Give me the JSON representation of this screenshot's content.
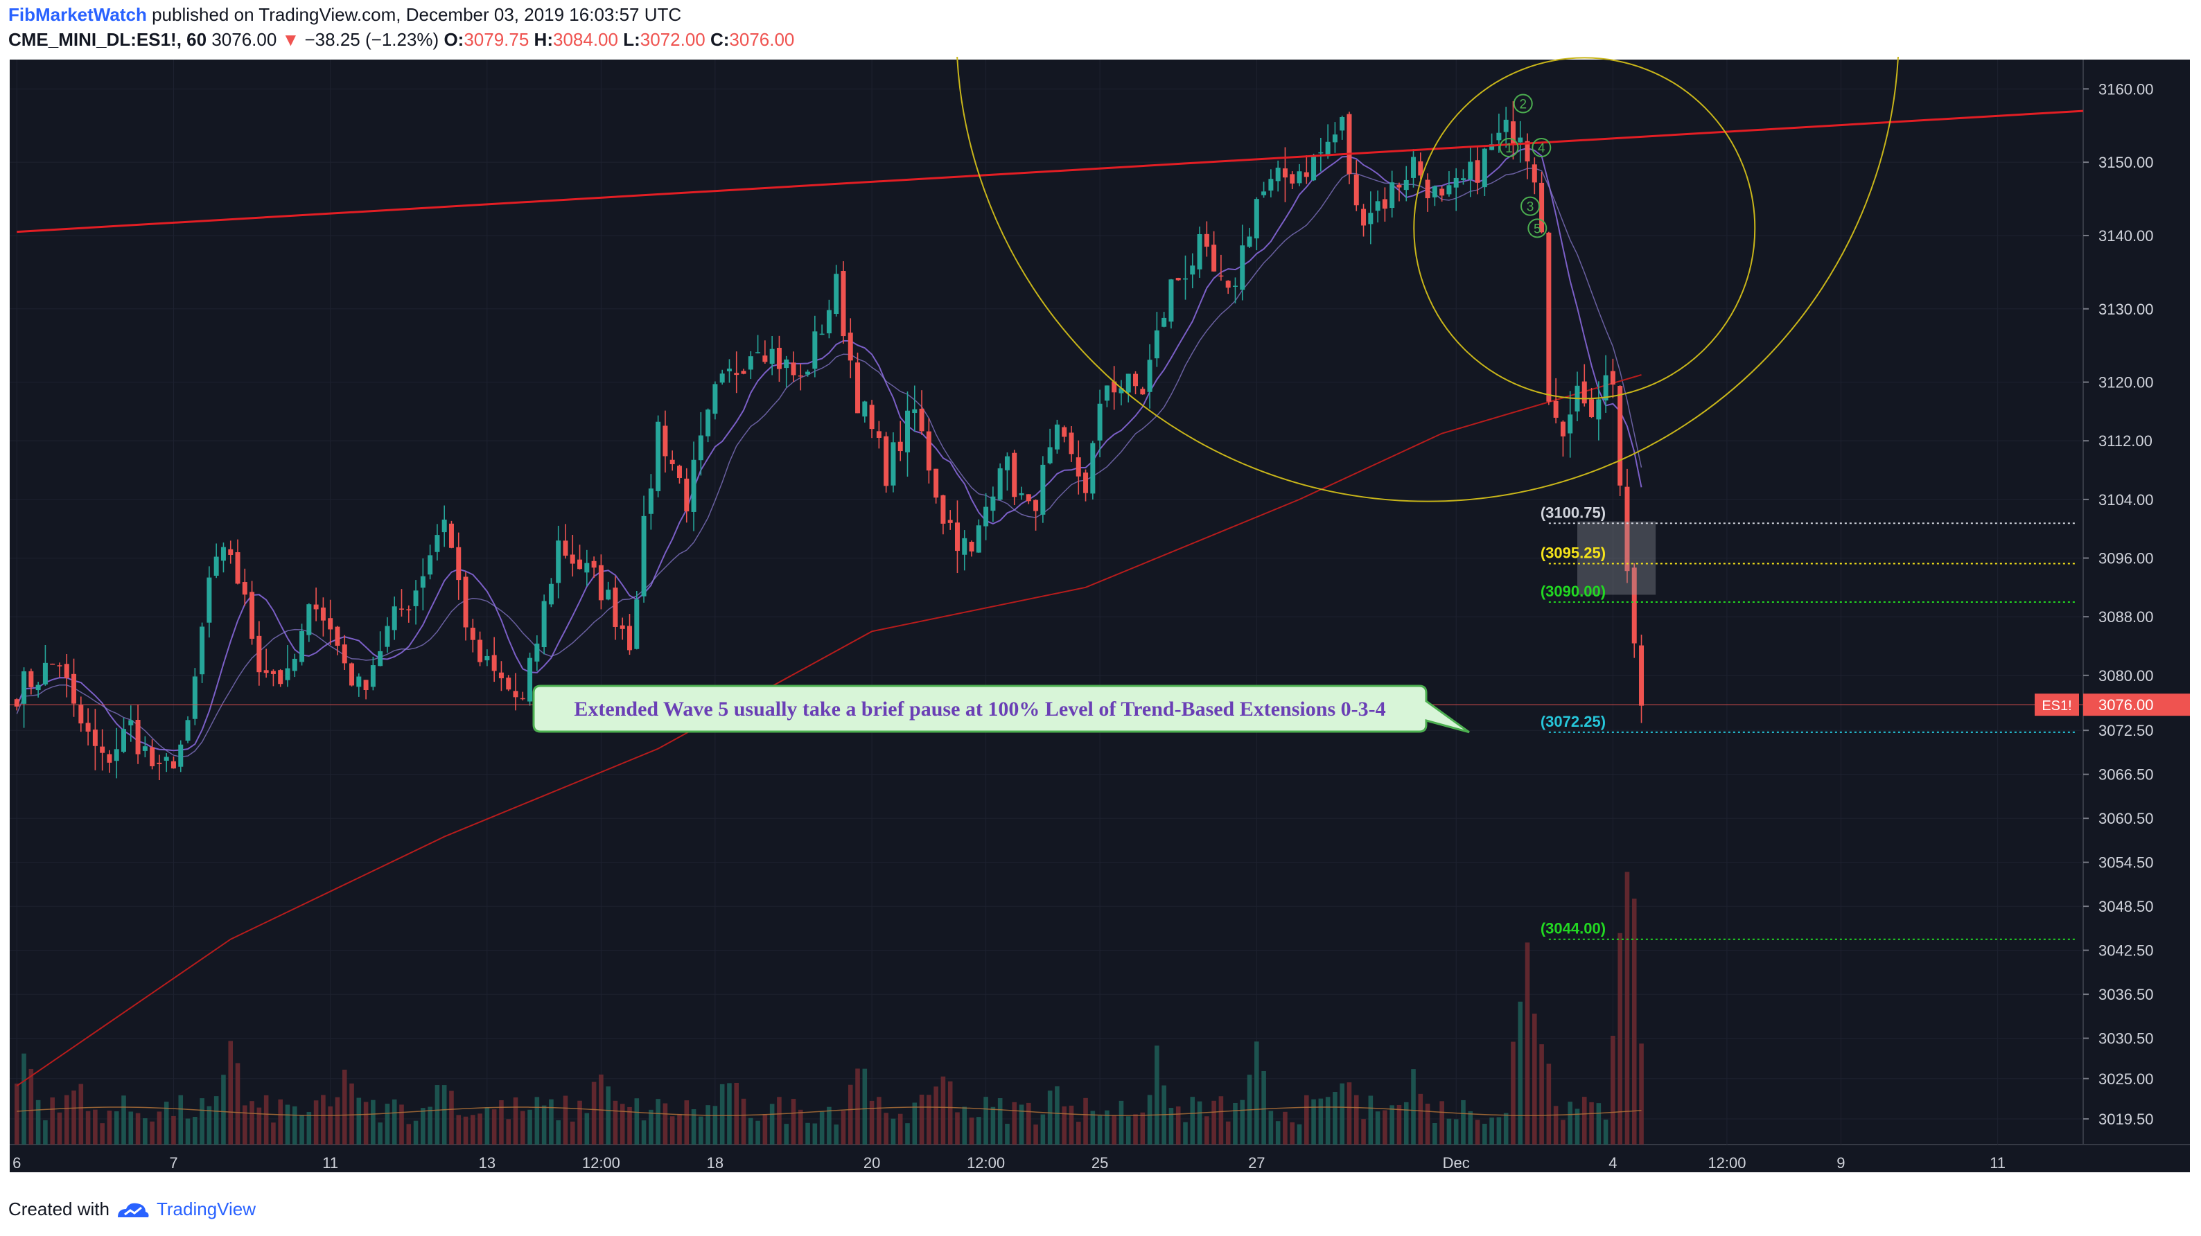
{
  "header": {
    "author": "FibMarketWatch",
    "published_text": "published on TradingView.com, December 03, 2019 16:03:57 UTC",
    "symbol": "CME_MINI_DL:ES1!, 60",
    "last": "3076.00",
    "change": "−38.25 (−1.23%)",
    "o_label": "O:",
    "o_value": "3079.75",
    "h_label": "H:",
    "h_value": "3084.00",
    "l_label": "L:",
    "l_value": "3072.00",
    "c_label": "C:",
    "c_value": "3076.00",
    "down_arrow": "▼"
  },
  "footer": {
    "created_with": "Created with",
    "brand": "TradingView",
    "logo_icon": "tradingview-logo-icon"
  },
  "colors": {
    "background": "#131722",
    "grid": "#1e2230",
    "up": "#26a69a",
    "down": "#ef5350",
    "trendline": "#e31e24",
    "ma200": "#b71c1c",
    "ma_short": "#7b5fc7",
    "circle": "#c9b61a",
    "wave_label": "#4caf50",
    "callout_text": "#6a3fb5"
  },
  "chart_data": {
    "type": "candlestick",
    "ylim": [
      3016,
      3164
    ],
    "y_ticks": [
      "3160.00",
      "3150.00",
      "3140.00",
      "3130.00",
      "3120.00",
      "3112.00",
      "3104.00",
      "3096.00",
      "3088.00",
      "3080.00",
      "3072.50",
      "3066.50",
      "3060.50",
      "3054.50",
      "3048.50",
      "3042.50",
      "3036.50",
      "3030.50",
      "3025.00",
      "3019.50"
    ],
    "x_ticks": [
      {
        "label": "6",
        "i": 0
      },
      {
        "label": "7",
        "i": 22
      },
      {
        "label": "11",
        "i": 44
      },
      {
        "label": "13",
        "i": 66
      },
      {
        "label": "12:00",
        "i": 82
      },
      {
        "label": "18",
        "i": 98
      },
      {
        "label": "20",
        "i": 120
      },
      {
        "label": "12:00",
        "i": 136
      },
      {
        "label": "25",
        "i": 152
      },
      {
        "label": "27",
        "i": 174
      },
      {
        "label": "Dec",
        "i": 202
      },
      {
        "label": "4",
        "i": 224
      },
      {
        "label": "12:00",
        "i": 240
      },
      {
        "label": "9",
        "i": 256
      },
      {
        "label": "11",
        "i": 278
      }
    ],
    "x_index_range": [
      -1,
      290
    ],
    "anchors": [
      [
        0,
        3078
      ],
      [
        6,
        3082
      ],
      [
        8,
        3075
      ],
      [
        12,
        3068
      ],
      [
        16,
        3073
      ],
      [
        20,
        3066
      ],
      [
        24,
        3072
      ],
      [
        27,
        3093
      ],
      [
        30,
        3097
      ],
      [
        34,
        3082
      ],
      [
        38,
        3079
      ],
      [
        42,
        3091
      ],
      [
        44,
        3086
      ],
      [
        48,
        3078
      ],
      [
        52,
        3086
      ],
      [
        56,
        3092
      ],
      [
        60,
        3102
      ],
      [
        64,
        3083
      ],
      [
        68,
        3079
      ],
      [
        71,
        3076
      ],
      [
        76,
        3098
      ],
      [
        82,
        3092
      ],
      [
        86,
        3085
      ],
      [
        90,
        3114
      ],
      [
        94,
        3104
      ],
      [
        98,
        3118
      ],
      [
        104,
        3126
      ],
      [
        110,
        3120
      ],
      [
        115,
        3133
      ],
      [
        118,
        3118
      ],
      [
        122,
        3108
      ],
      [
        126,
        3116
      ],
      [
        130,
        3102
      ],
      [
        134,
        3096
      ],
      [
        138,
        3110
      ],
      [
        142,
        3102
      ],
      [
        146,
        3112
      ],
      [
        150,
        3106
      ],
      [
        153,
        3120
      ],
      [
        158,
        3119
      ],
      [
        162,
        3133
      ],
      [
        166,
        3138
      ],
      [
        170,
        3131
      ],
      [
        174,
        3145
      ],
      [
        178,
        3148
      ],
      [
        182,
        3150
      ],
      [
        186,
        3155
      ],
      [
        188,
        3143
      ],
      [
        192,
        3145
      ],
      [
        196,
        3150
      ],
      [
        200,
        3144
      ],
      [
        204,
        3148
      ],
      [
        207,
        3152
      ],
      [
        209,
        3154
      ],
      [
        211,
        3155
      ],
      [
        213,
        3149
      ],
      [
        214,
        3141
      ],
      [
        215,
        3118
      ],
      [
        217,
        3112
      ],
      [
        219,
        3120
      ],
      [
        221,
        3115
      ],
      [
        223,
        3121
      ],
      [
        224,
        3119
      ],
      [
        225,
        3106
      ],
      [
        226,
        3094
      ],
      [
        227,
        3084
      ],
      [
        228,
        3076
      ]
    ],
    "volume_peaks": [
      [
        1,
        24
      ],
      [
        8,
        18
      ],
      [
        30,
        26
      ],
      [
        46,
        20
      ],
      [
        60,
        18
      ],
      [
        82,
        22
      ],
      [
        100,
        18
      ],
      [
        118,
        22
      ],
      [
        130,
        20
      ],
      [
        146,
        16
      ],
      [
        160,
        20
      ],
      [
        174,
        22
      ],
      [
        186,
        18
      ],
      [
        196,
        20
      ],
      [
        212,
        58
      ],
      [
        214,
        30
      ],
      [
        226,
        80
      ]
    ],
    "levels": [
      {
        "label": "(3100.75)",
        "value": 3100.75,
        "color": "#d1d4dc"
      },
      {
        "label": "(3095.25)",
        "value": 3095.25,
        "color": "#f5e31b"
      },
      {
        "label": "(3090.00)",
        "value": 3090.0,
        "color": "#22d822"
      },
      {
        "label": "(3072.25)",
        "value": 3072.25,
        "color": "#26c6da"
      },
      {
        "label": "(3044.00)",
        "value": 3044.0,
        "color": "#22d822"
      }
    ],
    "price_tag": {
      "symbol": "ES1!",
      "value": "3076.00",
      "y": 3076
    },
    "trendline": {
      "from": [
        0,
        3140.5
      ],
      "to": [
        290,
        3157
      ]
    },
    "annotation": "Extended Wave 5 usually take a brief pause at 100% Level of Trend-Based Extensions 0-3-4",
    "wave_labels": [
      {
        "label": "2",
        "i": 211,
        "y": 3158
      },
      {
        "label": "1",
        "i": 210,
        "y": 3152
      },
      {
        "label": "4",
        "i": 213,
        "y": 3152
      },
      {
        "label": "3",
        "i": 212,
        "y": 3144
      },
      {
        "label": "5",
        "i": 213,
        "y": 3141
      }
    ]
  }
}
